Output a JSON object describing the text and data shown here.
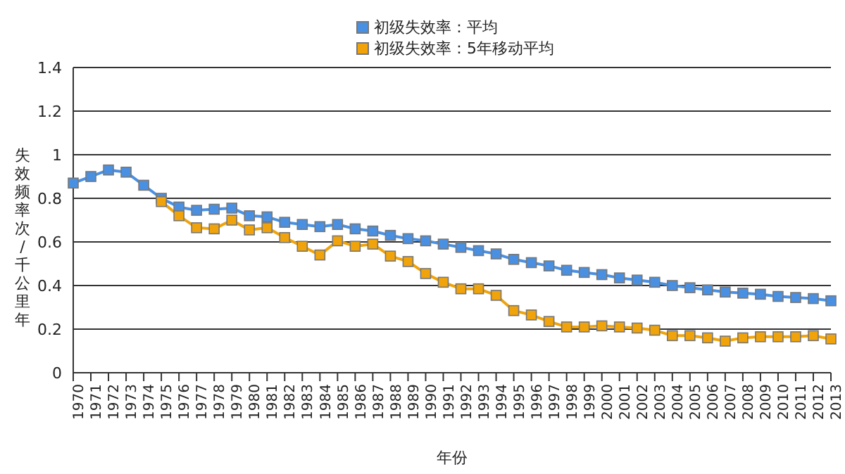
{
  "chart_data": {
    "type": "line",
    "xlabel": "年份",
    "ylabel": "失效频率次/千公里年",
    "categories": [
      "1970",
      "1971",
      "1972",
      "1973",
      "1974",
      "1975",
      "1976",
      "1977",
      "1978",
      "1979",
      "1980",
      "1981",
      "1982",
      "1983",
      "1984",
      "1985",
      "1986",
      "1987",
      "1988",
      "1989",
      "1990",
      "1991",
      "1992",
      "1993",
      "1994",
      "1995",
      "1996",
      "1997",
      "1998",
      "1999",
      "2000",
      "2001",
      "2002",
      "2003",
      "2004",
      "2005",
      "2006",
      "2007",
      "2008",
      "2009",
      "2010",
      "2011",
      "2012",
      "2013"
    ],
    "series": [
      {
        "name": "初级失效率：平均",
        "color": "#4a90e2",
        "values": [
          0.87,
          0.9,
          0.93,
          0.92,
          0.86,
          0.8,
          0.76,
          0.745,
          0.75,
          0.755,
          0.72,
          0.715,
          0.69,
          0.68,
          0.67,
          0.68,
          0.66,
          0.65,
          0.63,
          0.615,
          0.605,
          0.59,
          0.575,
          0.56,
          0.545,
          0.52,
          0.505,
          0.49,
          0.47,
          0.46,
          0.45,
          0.435,
          0.425,
          0.415,
          0.4,
          0.39,
          0.38,
          0.37,
          0.365,
          0.36,
          0.35,
          0.345,
          0.34,
          0.33
        ]
      },
      {
        "name": "初级失效率：5年移动平均",
        "color": "#f0a30a",
        "values": [
          null,
          null,
          null,
          null,
          null,
          0.785,
          0.72,
          0.665,
          0.66,
          0.7,
          0.655,
          0.665,
          0.62,
          0.58,
          0.54,
          0.605,
          0.58,
          0.59,
          0.535,
          0.51,
          0.455,
          0.415,
          0.385,
          0.385,
          0.355,
          0.285,
          0.265,
          0.235,
          0.21,
          0.21,
          0.215,
          0.21,
          0.205,
          0.195,
          0.17,
          0.17,
          0.16,
          0.145,
          0.16,
          0.165,
          0.165,
          0.165,
          0.17,
          0.155
        ]
      }
    ],
    "ylim": [
      0,
      1.4
    ],
    "yticks": [
      0,
      0.2,
      0.4,
      0.6,
      0.8,
      1,
      1.2,
      1.4
    ],
    "grid": "y",
    "legend": "top",
    "marker": "square",
    "line_style": "solid"
  }
}
